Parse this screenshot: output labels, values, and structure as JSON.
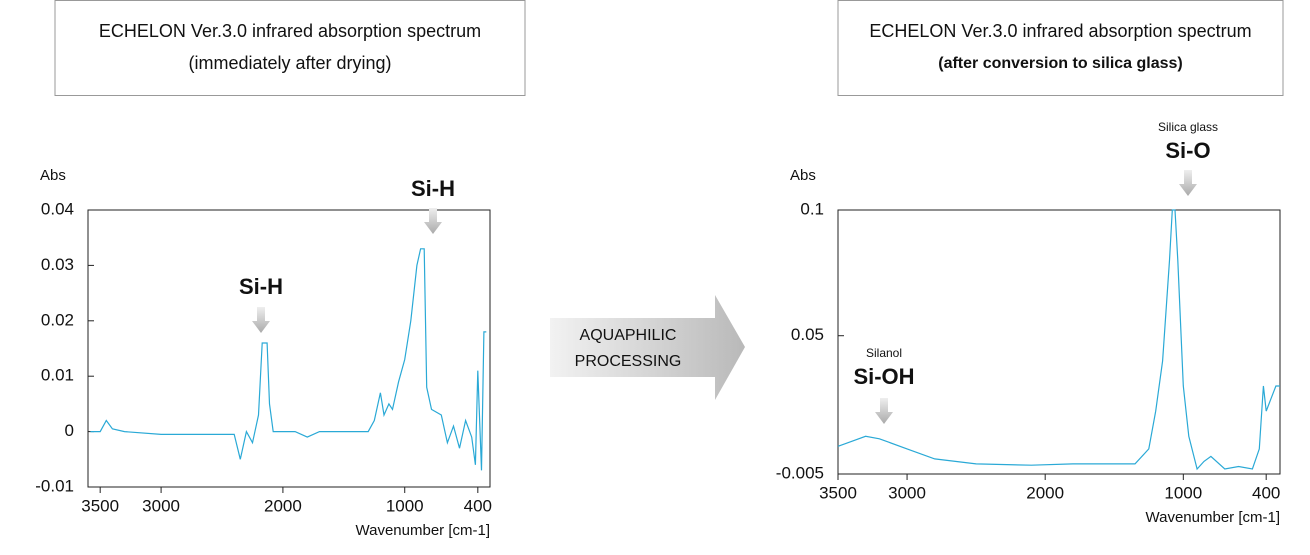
{
  "chart_data": [
    {
      "type": "line",
      "title": "ECHELON Ver.3.0 infrared absorption spectrum",
      "subtitle": "(immediately after drying)",
      "y_label": "Abs",
      "x_label": "Wavenumber [cm-1]",
      "xlim": [
        3600,
        300
      ],
      "xticks": [
        3500,
        3000,
        2000,
        1000,
        400
      ],
      "ylim": [
        -0.01,
        0.04
      ],
      "yticks": [
        -0.01,
        0,
        0.01,
        0.02,
        0.03,
        0.04
      ],
      "annotations": [
        {
          "label": "Si-H"
        },
        {
          "label": "Si-H"
        }
      ],
      "series": [
        {
          "color": "#2aa9d6",
          "x": [
            3580,
            3500,
            3450,
            3400,
            3300,
            3000,
            2500,
            2400,
            2350,
            2300,
            2250,
            2200,
            2170,
            2130,
            2110,
            2080,
            1900,
            1800,
            1700,
            1300,
            1250,
            1200,
            1170,
            1130,
            1100,
            1050,
            1000,
            950,
            900,
            870,
            840,
            820,
            780,
            700,
            650,
            600,
            550,
            500,
            450,
            420,
            400,
            370,
            350,
            330
          ],
          "values": [
            0,
            0,
            0.002,
            0.0005,
            0,
            -0.0005,
            -0.0005,
            -0.0005,
            -0.005,
            0,
            -0.002,
            0.003,
            0.016,
            0.016,
            0.005,
            0,
            0,
            -0.001,
            0,
            0,
            0.002,
            0.007,
            0.003,
            0.005,
            0.004,
            0.009,
            0.013,
            0.02,
            0.03,
            0.033,
            0.033,
            0.008,
            0.004,
            0.003,
            -0.002,
            0.001,
            -0.003,
            0.002,
            -0.001,
            -0.006,
            0.011,
            -0.007,
            0.018,
            0.018
          ]
        }
      ]
    },
    {
      "type": "line",
      "title": "ECHELON Ver.3.0 infrared absorption spectrum",
      "subtitle": "(after conversion to silica glass)",
      "y_label": "Abs",
      "x_label": "Wavenumber [cm-1]",
      "xlim": [
        3500,
        300
      ],
      "xticks": [
        3500,
        3000,
        2000,
        1000,
        400
      ],
      "ylim": [
        -0.005,
        0.1
      ],
      "yticks": [
        -0.005,
        0.05,
        0.1
      ],
      "annotations": [
        {
          "caption": "Silanol",
          "label": "Si-OH"
        },
        {
          "caption": "Silica glass",
          "label": "Si-O"
        }
      ],
      "series": [
        {
          "color": "#2aa9d6",
          "x": [
            3500,
            3400,
            3300,
            3200,
            3000,
            2800,
            2500,
            2100,
            1800,
            1500,
            1350,
            1250,
            1200,
            1150,
            1100,
            1080,
            1060,
            1040,
            1000,
            960,
            900,
            850,
            800,
            700,
            600,
            500,
            450,
            420,
            400,
            330,
            300
          ],
          "values": [
            0.006,
            0.008,
            0.01,
            0.009,
            0.005,
            0.001,
            -0.001,
            -0.0015,
            -0.001,
            -0.001,
            -0.001,
            0.005,
            0.02,
            0.04,
            0.08,
            0.1,
            0.1,
            0.08,
            0.03,
            0.01,
            -0.003,
            0,
            0.002,
            -0.003,
            -0.002,
            -0.003,
            0.005,
            0.03,
            0.02,
            0.03,
            0.03
          ]
        }
      ]
    }
  ],
  "process_arrow": {
    "lines": [
      "AQUAPHILIC",
      "PROCESSING"
    ]
  }
}
